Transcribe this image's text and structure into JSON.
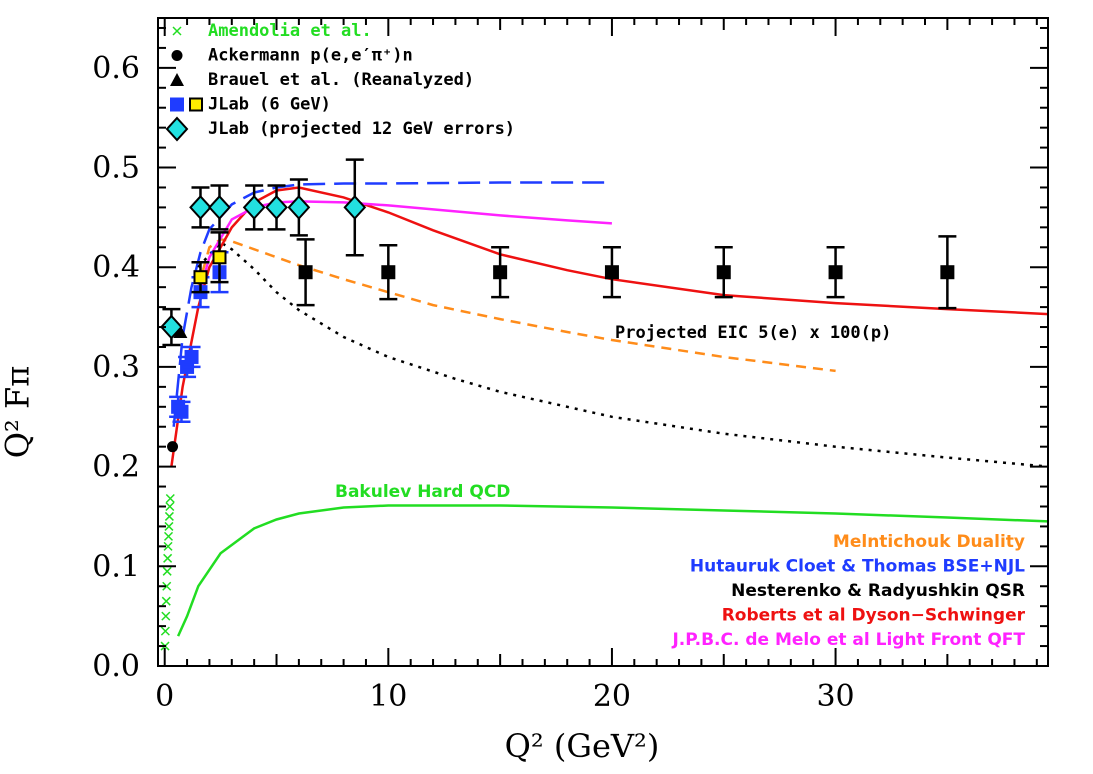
{
  "chart_data": {
    "type": "scatter",
    "xlabel": "Q² (GeV²)",
    "ylabel": "Q² Fπ",
    "xlim": [
      -0.3,
      39.5
    ],
    "ylim": [
      0.0,
      0.65
    ],
    "x_ticks": [
      "0",
      "10",
      "20",
      "30"
    ],
    "y_ticks": [
      "0.0",
      "0.1",
      "0.2",
      "0.3",
      "0.4",
      "0.5",
      "0.6"
    ],
    "legend_position": "top-left",
    "legend": [
      {
        "label": "Amendolia et al.",
        "marker": "x",
        "color": "#22dd22"
      },
      {
        "label": "Ackermann p(e,e′π⁺)n",
        "marker": "circle",
        "color": "#000000"
      },
      {
        "label": "Brauel et al. (Reanalyzed)",
        "marker": "triangle",
        "color": "#000000"
      },
      {
        "label": "JLab (6 GeV)",
        "marker": "square",
        "color": "#1f3cff"
      },
      {
        "label": "JLab (projected 12 GeV errors)",
        "marker": "diamond",
        "color": "#22e0e0"
      }
    ],
    "series": [
      {
        "name": "Amendolia et al.",
        "marker": "x",
        "color": "#22dd22",
        "points": [
          [
            0.015,
            0.02
          ],
          [
            0.03,
            0.035
          ],
          [
            0.05,
            0.05
          ],
          [
            0.07,
            0.065
          ],
          [
            0.09,
            0.08
          ],
          [
            0.11,
            0.095
          ],
          [
            0.13,
            0.108
          ],
          [
            0.15,
            0.12
          ],
          [
            0.17,
            0.13
          ],
          [
            0.19,
            0.14
          ],
          [
            0.21,
            0.15
          ],
          [
            0.23,
            0.16
          ],
          [
            0.25,
            0.168
          ]
        ]
      },
      {
        "name": "Ackermann p(e,e′π⁺)n",
        "marker": "circle",
        "color": "#000000",
        "points": [
          [
            0.35,
            0.22
          ]
        ]
      },
      {
        "name": "Brauel et al. (Reanalyzed)",
        "marker": "triangle",
        "color": "#000000",
        "points": [
          [
            0.7,
            0.335
          ],
          [
            1.0,
            0.3
          ]
        ]
      },
      {
        "name": "JLab (6 GeV)",
        "marker": "square",
        "color": "#1f3cff",
        "points": [
          [
            0.6,
            0.26,
            0.01
          ],
          [
            0.75,
            0.255,
            0.01
          ],
          [
            1.0,
            0.3,
            0.01
          ],
          [
            1.2,
            0.31,
            0.01
          ],
          [
            1.6,
            0.375,
            0.015
          ],
          [
            2.45,
            0.395,
            0.02
          ]
        ]
      },
      {
        "name": "JLab (6 GeV) yellow",
        "marker": "square-yellow",
        "color": "#ffee00",
        "points": [
          [
            1.6,
            0.39,
            0.015
          ],
          [
            2.45,
            0.41,
            0.025
          ]
        ]
      },
      {
        "name": "JLab (projected 12 GeV errors)",
        "marker": "diamond",
        "color": "#22e0e0",
        "points": [
          [
            0.3,
            0.34,
            0.018
          ],
          [
            1.6,
            0.46,
            0.02
          ],
          [
            2.45,
            0.46,
            0.022
          ],
          [
            4.0,
            0.46,
            0.022
          ],
          [
            5.0,
            0.46,
            0.022
          ],
          [
            6.0,
            0.46,
            0.028
          ],
          [
            8.5,
            0.46,
            0.048
          ]
        ]
      },
      {
        "name": "Projected EIC 5(e) x 100(p)",
        "marker": "square",
        "color": "#000000",
        "points": [
          [
            6.3,
            0.395,
            0.033
          ],
          [
            10,
            0.395,
            0.027
          ],
          [
            15,
            0.395,
            0.025
          ],
          [
            20,
            0.395,
            0.025
          ],
          [
            25,
            0.395,
            0.025
          ],
          [
            30,
            0.395,
            0.025
          ],
          [
            35,
            0.395,
            0.036
          ]
        ]
      }
    ],
    "curves": [
      {
        "name": "Bakulev Hard QCD",
        "style": "solid",
        "color": "#22dd22",
        "points": [
          [
            0.6,
            0.03
          ],
          [
            1.0,
            0.05
          ],
          [
            1.5,
            0.08
          ],
          [
            2.5,
            0.113
          ],
          [
            4,
            0.138
          ],
          [
            5,
            0.147
          ],
          [
            6,
            0.153
          ],
          [
            8,
            0.159
          ],
          [
            10,
            0.161
          ],
          [
            15,
            0.161
          ],
          [
            20,
            0.159
          ],
          [
            25,
            0.156
          ],
          [
            30,
            0.153
          ],
          [
            35,
            0.149
          ],
          [
            39.5,
            0.145
          ]
        ]
      },
      {
        "name": "Melntichouk Duality",
        "style": "dashed",
        "color": "#ff8c1a",
        "points": [
          [
            1.5,
            0.38
          ],
          [
            2,
            0.42
          ],
          [
            2.5,
            0.428
          ],
          [
            3,
            0.426
          ],
          [
            4,
            0.418
          ],
          [
            5,
            0.41
          ],
          [
            6,
            0.402
          ],
          [
            8,
            0.388
          ],
          [
            10,
            0.375
          ],
          [
            12,
            0.362
          ],
          [
            15,
            0.348
          ],
          [
            18,
            0.335
          ],
          [
            20,
            0.327
          ],
          [
            25,
            0.31
          ],
          [
            30,
            0.296
          ]
        ]
      },
      {
        "name": "Hutauruk Cloet & Thomas BSE+NJL",
        "style": "longdash",
        "color": "#1f3cff",
        "points": [
          [
            0.4,
            0.24
          ],
          [
            0.8,
            0.33
          ],
          [
            1.2,
            0.38
          ],
          [
            1.6,
            0.415
          ],
          [
            2,
            0.438
          ],
          [
            3,
            0.463
          ],
          [
            4,
            0.475
          ],
          [
            5,
            0.48
          ],
          [
            6,
            0.483
          ],
          [
            8,
            0.484
          ],
          [
            10,
            0.484
          ],
          [
            15,
            0.485
          ],
          [
            20,
            0.485
          ]
        ]
      },
      {
        "name": "Nesterenko & Radyushkin QSR",
        "style": "dotted",
        "color": "#000000",
        "points": [
          [
            1.5,
            0.4
          ],
          [
            2.5,
            0.425
          ],
          [
            3,
            0.418
          ],
          [
            4,
            0.398
          ],
          [
            5,
            0.375
          ],
          [
            6,
            0.357
          ],
          [
            8,
            0.33
          ],
          [
            10,
            0.31
          ],
          [
            13,
            0.288
          ],
          [
            15,
            0.275
          ],
          [
            20,
            0.25
          ],
          [
            25,
            0.233
          ],
          [
            30,
            0.22
          ],
          [
            35,
            0.209
          ],
          [
            39.5,
            0.2
          ]
        ]
      },
      {
        "name": "Roberts et al Dyson-Schwinger",
        "style": "solid",
        "color": "#ee1111",
        "points": [
          [
            0.3,
            0.2
          ],
          [
            0.8,
            0.28
          ],
          [
            1.5,
            0.36
          ],
          [
            2,
            0.4
          ],
          [
            3,
            0.44
          ],
          [
            4,
            0.465
          ],
          [
            5,
            0.477
          ],
          [
            6,
            0.48
          ],
          [
            8,
            0.47
          ],
          [
            10,
            0.455
          ],
          [
            12,
            0.437
          ],
          [
            15,
            0.413
          ],
          [
            18,
            0.397
          ],
          [
            20,
            0.388
          ],
          [
            25,
            0.372
          ],
          [
            30,
            0.364
          ],
          [
            35,
            0.358
          ],
          [
            39.5,
            0.353
          ]
        ]
      },
      {
        "name": "J.P.B.C. de Melo et al Light Front QFT",
        "style": "solid",
        "color": "#ff22ff",
        "points": [
          [
            1.5,
            0.37
          ],
          [
            2,
            0.41
          ],
          [
            3,
            0.448
          ],
          [
            4,
            0.46
          ],
          [
            5,
            0.465
          ],
          [
            6,
            0.466
          ],
          [
            8,
            0.465
          ],
          [
            10,
            0.462
          ],
          [
            12,
            0.458
          ],
          [
            15,
            0.452
          ],
          [
            18,
            0.447
          ],
          [
            20,
            0.444
          ]
        ]
      }
    ],
    "annotations": {
      "eic": "Projected EIC 5(e) x 100(p)",
      "bakulev": "Bakulev Hard QCD"
    },
    "model_labels": [
      {
        "text": "Melntichouk Duality",
        "color": "#ff8c1a"
      },
      {
        "text": "Hutauruk Cloet & Thomas BSE+NJL",
        "color": "#1f3cff"
      },
      {
        "text": "Nesterenko & Radyushkin QSR",
        "color": "#000000"
      },
      {
        "text": "Roberts et al Dyson−Schwinger",
        "color": "#ee1111"
      },
      {
        "text": "J.P.B.C. de Melo et al Light Front QFT",
        "color": "#ff22ff"
      }
    ]
  }
}
